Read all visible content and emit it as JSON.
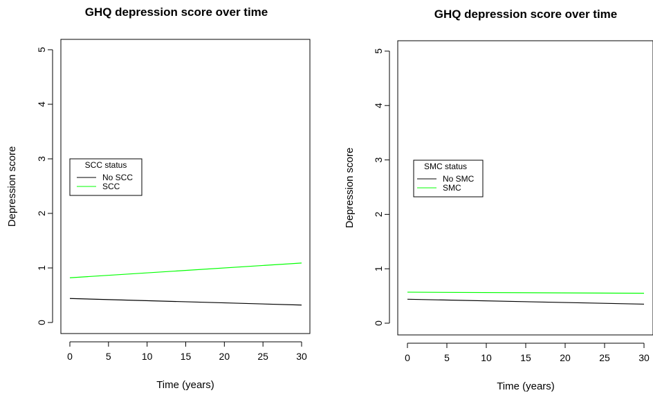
{
  "chart_data": [
    {
      "type": "line",
      "title": "GHQ depression score over time",
      "xlabel": "Time (years)",
      "ylabel": "Depression score",
      "xlim": [
        0,
        30
      ],
      "ylim": [
        0,
        5
      ],
      "xticks": [
        "0",
        "5",
        "10",
        "15",
        "20",
        "25",
        "30"
      ],
      "yticks": [
        "0",
        "1",
        "2",
        "3",
        "4",
        "5"
      ],
      "legend": {
        "title": "SCC status",
        "placement": "left"
      },
      "series": [
        {
          "name": "No SCC",
          "color": "#000000",
          "x": [
            0,
            30
          ],
          "y": [
            0.44,
            0.32
          ]
        },
        {
          "name": "SCC",
          "color": "#00ff00",
          "x": [
            0,
            30
          ],
          "y": [
            0.82,
            1.09
          ]
        }
      ]
    },
    {
      "type": "line",
      "title": "GHQ depression score over time",
      "xlabel": "Time (years)",
      "ylabel": "Depression score",
      "xlim": [
        0,
        30
      ],
      "ylim": [
        0,
        5
      ],
      "xticks": [
        "0",
        "5",
        "10",
        "15",
        "20",
        "25",
        "30"
      ],
      "yticks": [
        "0",
        "1",
        "2",
        "3",
        "4",
        "5"
      ],
      "legend": {
        "title": "SMC status",
        "placement": "left"
      },
      "series": [
        {
          "name": "No SMC",
          "color": "#000000",
          "x": [
            0,
            30
          ],
          "y": [
            0.44,
            0.35
          ]
        },
        {
          "name": "SMC",
          "color": "#00ff00",
          "x": [
            0,
            30
          ],
          "y": [
            0.57,
            0.55
          ]
        }
      ]
    }
  ]
}
